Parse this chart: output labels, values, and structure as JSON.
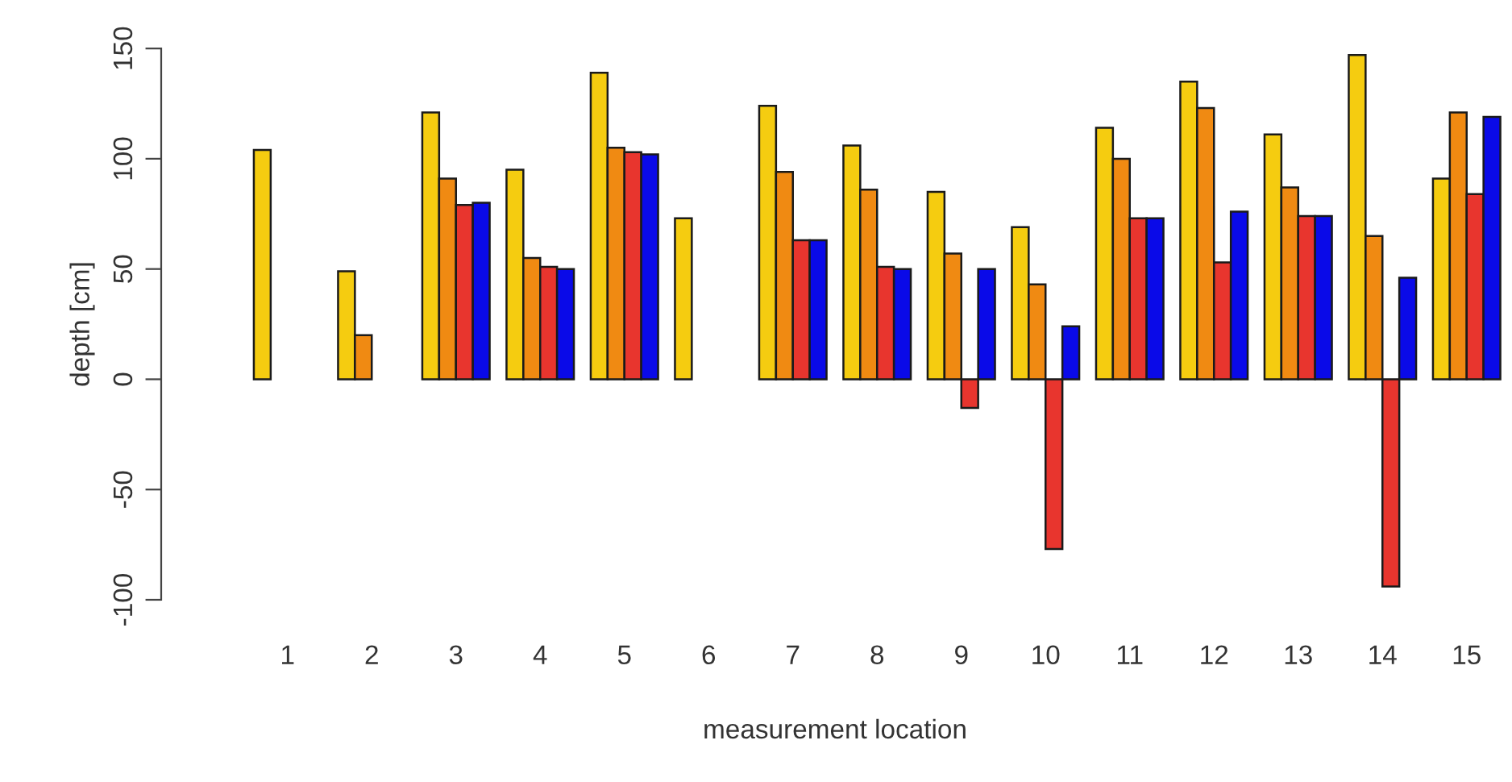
{
  "chart_data": {
    "type": "bar",
    "xlabel": "measurement location",
    "ylabel": "depth [cm]",
    "categories": [
      "1",
      "2",
      "3",
      "4",
      "5",
      "6",
      "7",
      "8",
      "9",
      "10",
      "11",
      "12",
      "13",
      "14",
      "15"
    ],
    "series": [
      {
        "color": "#f5cc10",
        "values": [
          104,
          49,
          121,
          95,
          139,
          73,
          124,
          106,
          85,
          69,
          114,
          135,
          111,
          147,
          91
        ]
      },
      {
        "color": "#f08a12",
        "values": [
          null,
          20,
          91,
          55,
          105,
          null,
          94,
          86,
          57,
          43,
          100,
          123,
          87,
          65,
          121
        ]
      },
      {
        "color": "#e8352e",
        "values": [
          null,
          null,
          79,
          51,
          103,
          null,
          63,
          51,
          -13,
          -77,
          73,
          53,
          74,
          -94,
          84
        ]
      },
      {
        "color": "#0a0ae8",
        "values": [
          null,
          null,
          80,
          50,
          102,
          null,
          63,
          50,
          50,
          24,
          73,
          76,
          74,
          46,
          119
        ]
      }
    ],
    "ylim": [
      -100,
      150
    ],
    "yticks": [
      -100,
      -50,
      0,
      50,
      100,
      150
    ],
    "grid": false,
    "legend": false
  }
}
